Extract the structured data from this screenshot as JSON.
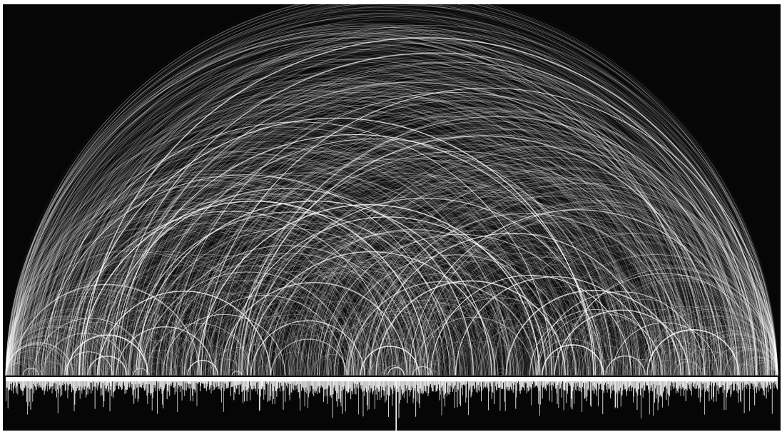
{
  "figure": {
    "kind": "arc-diagram",
    "theme": {
      "background": "#060606",
      "arc_color": "#ffffff",
      "bar_color": "#ffffff"
    },
    "node_count": 1189,
    "arc_count": 2600,
    "longest_arc_span_fraction": 0.985,
    "seed": 1189
  }
}
